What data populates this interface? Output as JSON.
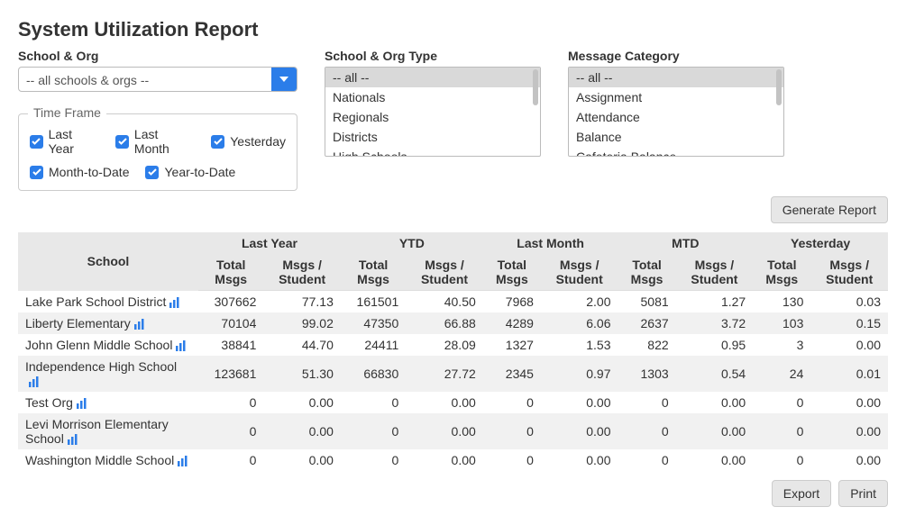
{
  "title": "System Utilization Report",
  "schoolOrg": {
    "label": "School & Org",
    "selected": "-- all schools & orgs --"
  },
  "orgType": {
    "label": "School & Org Type",
    "items": [
      "-- all --",
      "Nationals",
      "Regionals",
      "Districts",
      "High Schools"
    ],
    "selected": "-- all --"
  },
  "msgCategory": {
    "label": "Message Category",
    "items": [
      "-- all --",
      "Assignment",
      "Attendance",
      "Balance",
      "Cafeteria Balance"
    ],
    "selected": "-- all --"
  },
  "timeFrame": {
    "legend": "Time Frame",
    "checks": {
      "lastYear": "Last Year",
      "lastMonth": "Last Month",
      "yesterday": "Yesterday",
      "mtd": "Month-to-Date",
      "ytd": "Year-to-Date"
    }
  },
  "buttons": {
    "generate": "Generate Report",
    "export": "Export",
    "print": "Print"
  },
  "table": {
    "schoolHeader": "School",
    "groups": [
      "Last Year",
      "YTD",
      "Last Month",
      "MTD",
      "Yesterday"
    ],
    "subTotal": "Total Msgs",
    "subPer": "Msgs / Student",
    "rows": [
      {
        "name": "Lake Park School District",
        "vals": [
          "307662",
          "77.13",
          "161501",
          "40.50",
          "7968",
          "2.00",
          "5081",
          "1.27",
          "130",
          "0.03"
        ]
      },
      {
        "name": "Liberty Elementary",
        "vals": [
          "70104",
          "99.02",
          "47350",
          "66.88",
          "4289",
          "6.06",
          "2637",
          "3.72",
          "103",
          "0.15"
        ]
      },
      {
        "name": "John Glenn Middle School",
        "vals": [
          "38841",
          "44.70",
          "24411",
          "28.09",
          "1327",
          "1.53",
          "822",
          "0.95",
          "3",
          "0.00"
        ]
      },
      {
        "name": "Independence High School",
        "vals": [
          "123681",
          "51.30",
          "66830",
          "27.72",
          "2345",
          "0.97",
          "1303",
          "0.54",
          "24",
          "0.01"
        ]
      },
      {
        "name": "Test Org",
        "vals": [
          "0",
          "0.00",
          "0",
          "0.00",
          "0",
          "0.00",
          "0",
          "0.00",
          "0",
          "0.00"
        ]
      },
      {
        "name": "Levi Morrison Elementary School",
        "vals": [
          "0",
          "0.00",
          "0",
          "0.00",
          "0",
          "0.00",
          "0",
          "0.00",
          "0",
          "0.00"
        ]
      },
      {
        "name": "Washington Middle School",
        "vals": [
          "0",
          "0.00",
          "0",
          "0.00",
          "0",
          "0.00",
          "0",
          "0.00",
          "0",
          "0.00"
        ]
      }
    ]
  },
  "colors": {
    "accent": "#2b7de9",
    "headerBg": "#e8e8e8",
    "altRow": "#f1f1f1",
    "btnBg": "#e7e7e7",
    "border": "#cccccc"
  }
}
